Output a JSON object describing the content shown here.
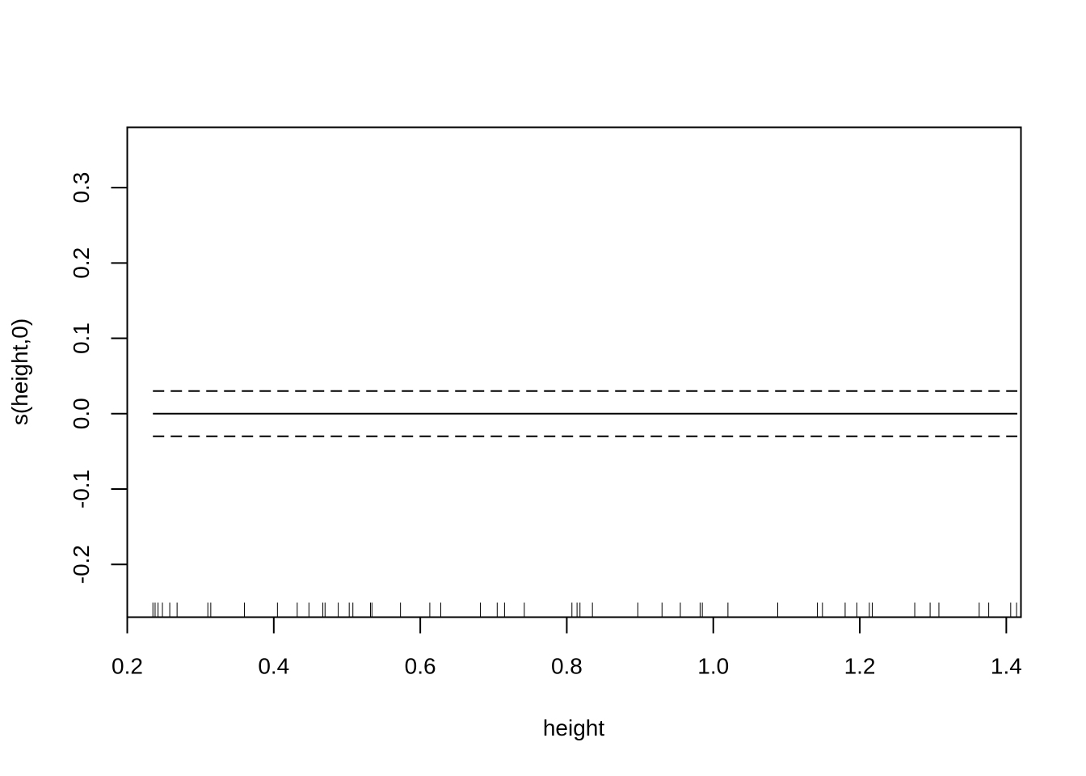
{
  "chart_data": {
    "type": "line",
    "title": "",
    "xlabel": "height",
    "ylabel": "s(height,0)",
    "xlim": [
      0.2,
      1.42
    ],
    "ylim": [
      -0.27,
      0.38
    ],
    "x_ticks": [
      0.2,
      0.4,
      0.6,
      0.8,
      1.0,
      1.2,
      1.4
    ],
    "x_tick_labels": [
      "0.2",
      "0.4",
      "0.6",
      "0.8",
      "1.0",
      "1.2",
      "1.4"
    ],
    "y_ticks": [
      -0.2,
      -0.1,
      0.0,
      0.1,
      0.2,
      0.3
    ],
    "y_tick_labels": [
      "-0.2",
      "-0.1",
      "0.0",
      "0.1",
      "0.2",
      "0.3"
    ],
    "grid": false,
    "series": [
      {
        "style": "solid",
        "x": [
          0.235,
          1.415
        ],
        "y": [
          0.0,
          0.0
        ]
      },
      {
        "style": "dashed",
        "x": [
          0.235,
          1.415
        ],
        "y": [
          0.03,
          0.03
        ]
      },
      {
        "style": "dashed",
        "x": [
          0.235,
          1.415
        ],
        "y": [
          -0.03,
          -0.03
        ]
      }
    ],
    "rug": [
      0.235,
      0.238,
      0.242,
      0.248,
      0.258,
      0.268,
      0.31,
      0.314,
      0.36,
      0.405,
      0.432,
      0.448,
      0.467,
      0.47,
      0.488,
      0.503,
      0.508,
      0.532,
      0.534,
      0.573,
      0.613,
      0.628,
      0.682,
      0.705,
      0.715,
      0.742,
      0.807,
      0.814,
      0.818,
      0.835,
      0.897,
      0.93,
      0.955,
      0.982,
      0.985,
      1.02,
      1.088,
      1.142,
      1.149,
      1.18,
      1.196,
      1.213,
      1.217,
      1.275,
      1.296,
      1.308,
      1.363,
      1.376,
      1.406,
      1.414
    ]
  }
}
